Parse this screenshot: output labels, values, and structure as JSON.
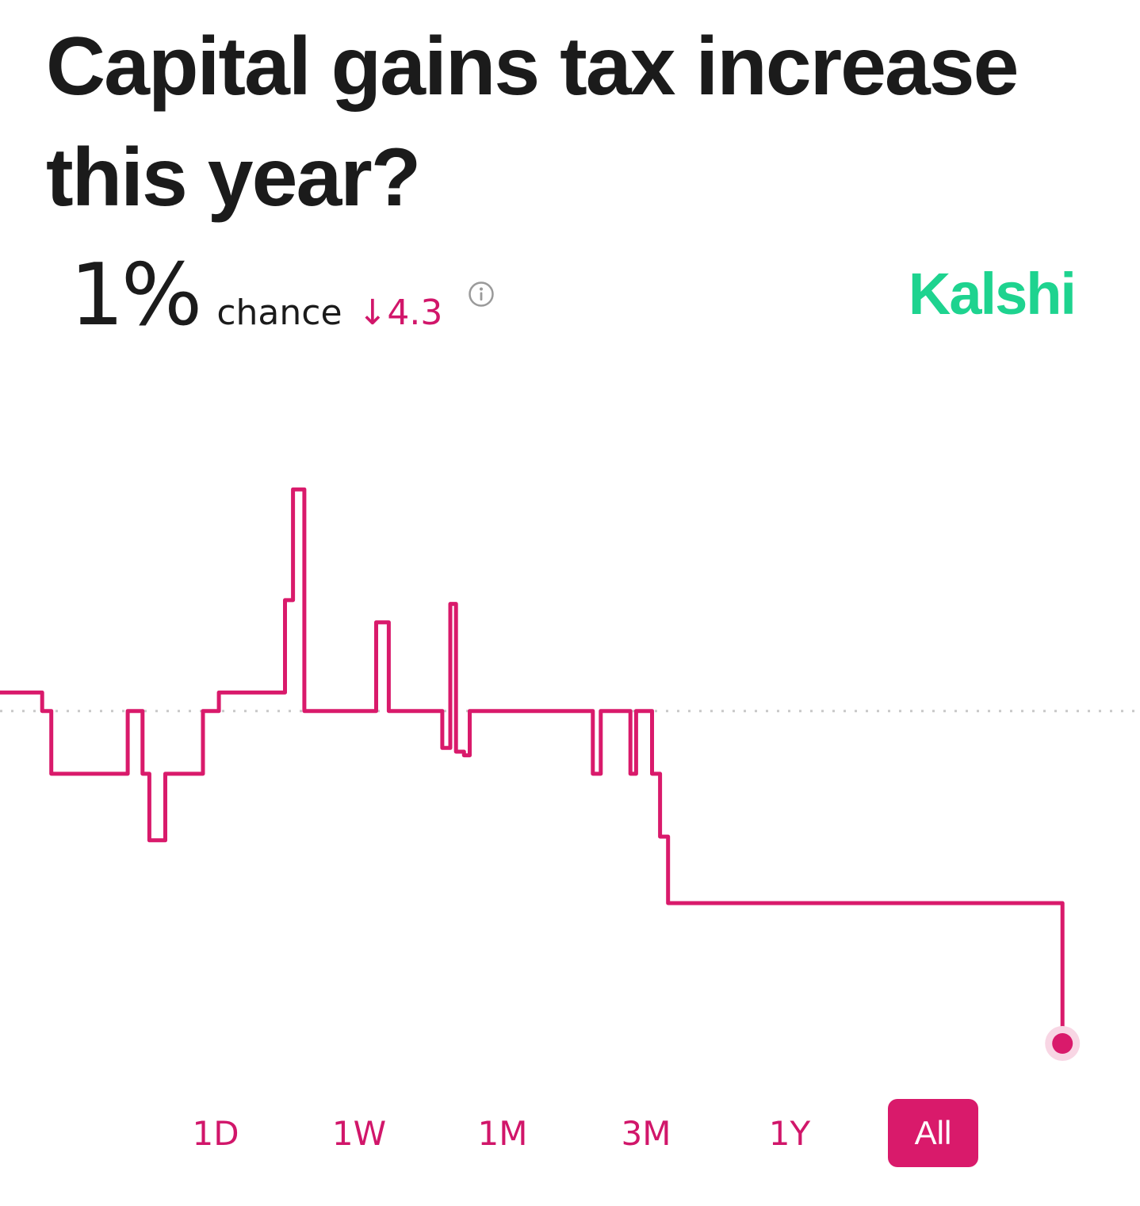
{
  "header": {
    "title": "Capital gains tax increase this year?"
  },
  "stat": {
    "value": "1%",
    "label": "chance",
    "change": "↓4.3"
  },
  "brand": {
    "name": "Kalshi"
  },
  "colors": {
    "accent": "#d91a6b",
    "brand": "#1ed38f",
    "text": "#1b1b1b",
    "reference_line": "#c8c8c8"
  },
  "icons": {
    "info": "info-circle-icon"
  },
  "range_selector": {
    "options": [
      "1D",
      "1W",
      "1M",
      "3M",
      "1Y",
      "All"
    ],
    "selected": "All"
  },
  "chart_data": {
    "type": "line",
    "interpolation": "step",
    "unit": "% chance",
    "y_range": [
      1,
      18
    ],
    "reference_value": 10,
    "grid": false,
    "legend": "none",
    "x": [
      0,
      3.7,
      4.5,
      11.2,
      12.5,
      13.1,
      14.5,
      17.8,
      19.2,
      25.0,
      25.7,
      26.7,
      33.0,
      34.1,
      38.8,
      39.5,
      40.0,
      40.7,
      41.2,
      52.0,
      52.7,
      55.3,
      55.8,
      57.2,
      57.9,
      58.6,
      59.2,
      60.3,
      61.2,
      62.1,
      71.3,
      72.1,
      84.5,
      85.0,
      93.2
    ],
    "values": [
      10.5,
      10.0,
      8.3,
      10.0,
      8.3,
      6.5,
      8.3,
      10.0,
      10.5,
      13.0,
      16.0,
      10.0,
      12.4,
      10.0,
      9.0,
      12.9,
      8.9,
      8.8,
      10.0,
      8.3,
      10.0,
      8.3,
      10.0,
      8.3,
      6.6,
      4.8,
      4.8,
      4.8,
      4.8,
      4.8,
      4.8,
      4.8,
      4.8,
      4.8,
      1.0
    ]
  }
}
